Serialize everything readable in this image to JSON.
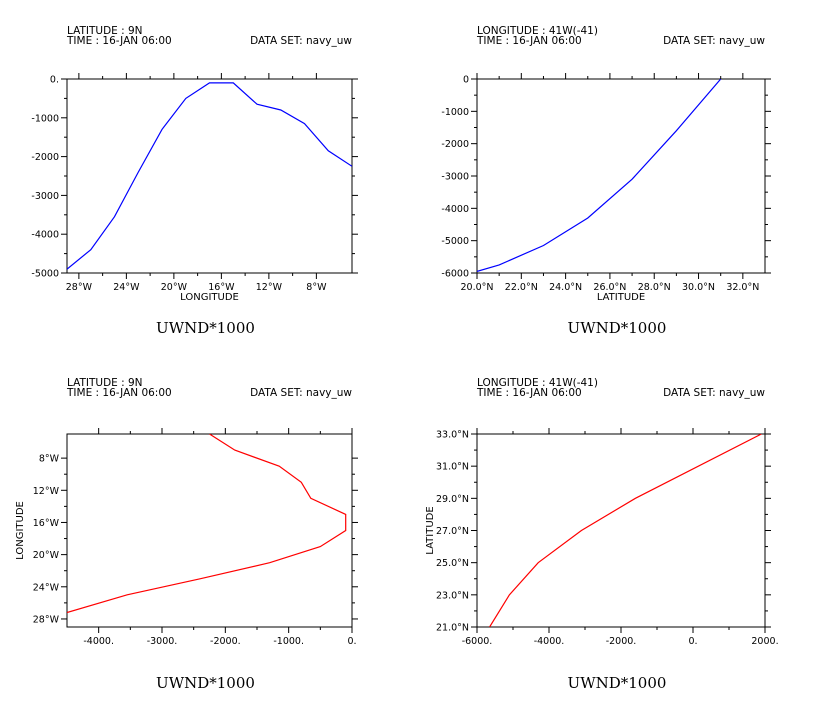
{
  "chart_data": [
    {
      "type": "line",
      "header_left": [
        "LATITUDE : 9N",
        "TIME : 16-JAN 06:00"
      ],
      "header_right": "DATA SET: navy_uw",
      "xlabel": "LONGITUDE",
      "ylabel": "",
      "caption": "UWND*1000",
      "color": "#0000ff",
      "orientation": "horizontal",
      "xlim": [
        -29,
        -5
      ],
      "ylim": [
        -5000,
        0
      ],
      "x_ticks": [
        -28,
        -24,
        -20,
        -16,
        -12,
        -8
      ],
      "x_tick_labels": [
        "28°W",
        "24°W",
        "20°W",
        "16°W",
        "12°W",
        "8°W"
      ],
      "y_ticks": [
        0,
        -1000,
        -2000,
        -3000,
        -4000,
        -5000
      ],
      "y_tick_labels": [
        "0.",
        "-1000",
        "-2000",
        "-3000",
        "-4000",
        "-5000"
      ],
      "x": [
        -29,
        -27,
        -25,
        -23,
        -21,
        -19,
        -17,
        -15,
        -13,
        -11,
        -9,
        -7,
        -5
      ],
      "y": [
        -4900,
        -4400,
        -3550,
        -2400,
        -1300,
        -500,
        -100,
        -100,
        -650,
        -800,
        -1150,
        -1850,
        -2250
      ]
    },
    {
      "type": "line",
      "header_left": [
        "LONGITUDE : 41W(-41)",
        "TIME : 16-JAN 06:00"
      ],
      "header_right": "DATA SET: navy_uw",
      "xlabel": "LATITUDE",
      "ylabel": "",
      "caption": "UWND*1000",
      "color": "#0000ff",
      "orientation": "horizontal",
      "xlim": [
        20,
        33
      ],
      "ylim": [
        -6000,
        0
      ],
      "x_ticks": [
        20,
        22,
        24,
        26,
        28,
        30,
        32
      ],
      "x_tick_labels": [
        "20.0°N",
        "22.0°N",
        "24.0°N",
        "26.0°N",
        "28.0°N",
        "30.0°N",
        "32.0°N"
      ],
      "y_ticks": [
        0,
        -1000,
        -2000,
        -3000,
        -4000,
        -5000,
        -6000
      ],
      "y_tick_labels": [
        "0",
        "-1000",
        "-2000",
        "-3000",
        "-4000",
        "-5000",
        "-6000"
      ],
      "x": [
        20,
        21,
        23,
        25,
        27,
        29,
        31
      ],
      "y": [
        -5950,
        -5750,
        -5150,
        -4300,
        -3100,
        -1600,
        0
      ]
    },
    {
      "type": "line",
      "header_left": [
        "LATITUDE : 9N",
        "TIME : 16-JAN 06:00"
      ],
      "header_right": "DATA SET: navy_uw",
      "xlabel": "",
      "ylabel": "LONGITUDE",
      "caption": "UWND*1000",
      "color": "#ff0000",
      "orientation": "vertical",
      "xlim": [
        -4500,
        0
      ],
      "ylim": [
        -29,
        -5
      ],
      "x_ticks": [
        -4000,
        -3000,
        -2000,
        -1000,
        0
      ],
      "x_tick_labels": [
        "-4000.",
        "-3000.",
        "-2000.",
        "-1000.",
        "0."
      ],
      "y_ticks": [
        -8,
        -12,
        -16,
        -20,
        -24,
        -28
      ],
      "y_tick_labels": [
        "8°W",
        "12°W",
        "16°W",
        "20°W",
        "24°W",
        "28°W"
      ],
      "x": [
        -4500,
        -3550,
        -2400,
        -1300,
        -500,
        -100,
        -100,
        -650,
        -800,
        -1150,
        -1850,
        -2250
      ],
      "y": [
        -27.2,
        -25,
        -23,
        -21,
        -19,
        -17,
        -15,
        -13,
        -11,
        -9,
        -7,
        -5
      ]
    },
    {
      "type": "line",
      "header_left": [
        "LONGITUDE : 41W(-41)",
        "TIME : 16-JAN 06:00"
      ],
      "header_right": "DATA SET: navy_uw",
      "xlabel": "",
      "ylabel": "LATITUDE",
      "caption": "UWND*1000",
      "color": "#ff0000",
      "orientation": "vertical",
      "xlim": [
        -6000,
        2000
      ],
      "ylim": [
        21,
        33
      ],
      "x_ticks": [
        -6000,
        -4000,
        -2000,
        0,
        2000
      ],
      "x_tick_labels": [
        "-6000.",
        "-4000.",
        "-2000.",
        "0.",
        "2000."
      ],
      "y_ticks": [
        21,
        23,
        25,
        27,
        29,
        31,
        33
      ],
      "y_tick_labels": [
        "21.0°N",
        "23.0°N",
        "25.0°N",
        "27.0°N",
        "29.0°N",
        "31.0°N",
        "33.0°N"
      ],
      "x": [
        -5650,
        -5100,
        -4300,
        -3100,
        -1600,
        1900
      ],
      "y": [
        21,
        23,
        25,
        27,
        29,
        33
      ]
    }
  ]
}
